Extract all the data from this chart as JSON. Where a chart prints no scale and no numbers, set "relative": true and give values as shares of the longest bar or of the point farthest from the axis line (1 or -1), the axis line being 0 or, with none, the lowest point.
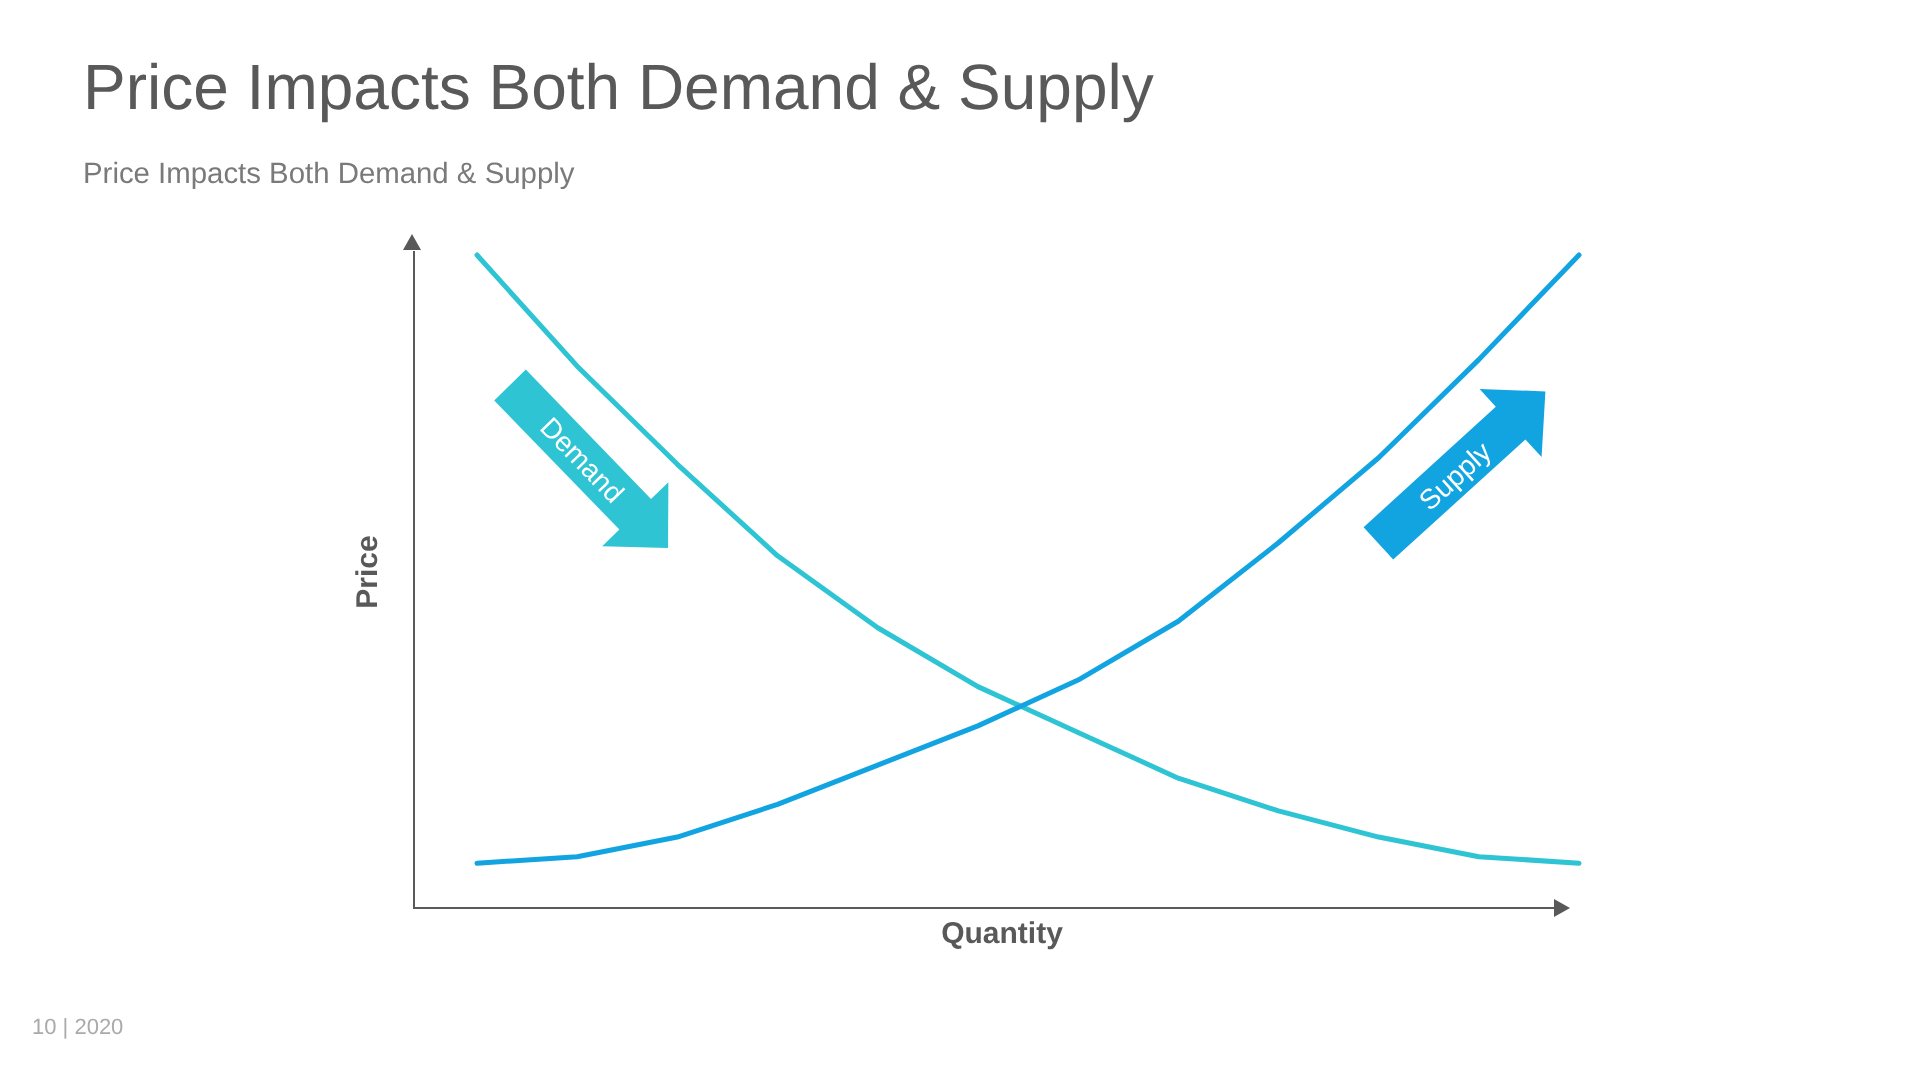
{
  "chart_data": {
    "type": "line",
    "title": "Price Impacts Both Demand & Supply",
    "subtitle": "Price Impacts Both Demand & Supply",
    "xlabel": "Quantity",
    "ylabel": "Price",
    "relative": true,
    "categories": [
      null,
      null,
      null,
      null,
      null,
      null,
      null,
      null,
      null,
      null,
      null,
      null
    ],
    "series": [
      {
        "name": "Demand",
        "color": "#2ec4d3",
        "values": [
          1,
          0.83,
          0.68,
          0.54,
          0.43,
          0.34,
          0.27,
          0.2,
          0.15,
          0.11,
          0.08,
          0.07
        ]
      },
      {
        "name": "Supply",
        "color": "#12a4e1",
        "values": [
          0.07,
          0.08,
          0.11,
          0.16,
          0.22,
          0.28,
          0.35,
          0.44,
          0.56,
          0.69,
          0.84,
          1
        ]
      }
    ],
    "annotations": [
      "10 | 2020"
    ]
  }
}
